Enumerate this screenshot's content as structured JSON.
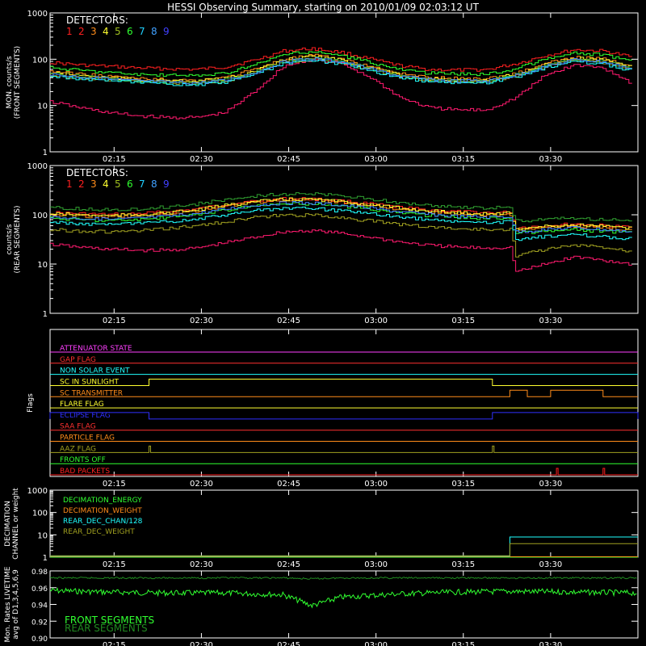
{
  "title": "HESSI Observing Summary, starting on 2010/01/09 02:03:12 UT",
  "colors": {
    "det": [
      "#ff2020",
      "#ff2020",
      "#ff8c1a",
      "#ffff30",
      "#a0c020",
      "#30ff30",
      "#20d0ff",
      "#40a0ff",
      "#4040ff"
    ],
    "det_line": [
      "#ff2020",
      "#ff1a6e",
      "#ff8c1a",
      "#ffff30",
      "#a0a020",
      "#30ff30",
      "#30a030",
      "#20ffff",
      "#4080ff"
    ]
  },
  "time_ticks": [
    "02:15",
    "02:30",
    "02:45",
    "03:00",
    "03:15",
    "03:30"
  ],
  "chart_data": [
    {
      "type": "line",
      "panel": "front",
      "ylabel_lines": [
        "MON. counts/s",
        "(FRONT SEGMENTS)"
      ],
      "yscale": "log",
      "ylim": [
        1,
        1000
      ],
      "ytick_labels": [
        "1",
        "10",
        "100",
        "1000"
      ],
      "legend_title": "DETECTORS:",
      "legend_items": [
        "1",
        "2",
        "3",
        "4",
        "5",
        "6",
        "7",
        "8",
        "9"
      ],
      "x": [
        "02:04",
        "02:09",
        "02:14",
        "02:19",
        "02:24",
        "02:29",
        "02:34",
        "02:39",
        "02:44",
        "02:49",
        "02:54",
        "02:59",
        "03:04",
        "03:09",
        "03:14",
        "03:19",
        "03:24",
        "03:29",
        "03:34",
        "03:39",
        "03:44"
      ],
      "series": [
        {
          "name": "1",
          "values": [
            85,
            75,
            70,
            65,
            62,
            60,
            68,
            95,
            150,
            170,
            140,
            100,
            72,
            60,
            58,
            60,
            80,
            120,
            160,
            150,
            110
          ]
        },
        {
          "name": "2",
          "values": [
            12,
            9,
            7,
            6,
            5.5,
            5.5,
            7,
            20,
            70,
            100,
            80,
            40,
            15,
            9,
            8,
            8,
            15,
            45,
            75,
            65,
            30
          ]
        },
        {
          "name": "3",
          "values": [
            55,
            48,
            42,
            38,
            36,
            35,
            40,
            60,
            100,
            120,
            100,
            70,
            48,
            40,
            38,
            38,
            50,
            80,
            110,
            100,
            70
          ]
        },
        {
          "name": "4",
          "values": [
            50,
            45,
            40,
            36,
            34,
            33,
            38,
            55,
            95,
            115,
            95,
            65,
            45,
            37,
            35,
            35,
            48,
            75,
            105,
            95,
            65
          ]
        },
        {
          "name": "5",
          "values": [
            45,
            40,
            36,
            33,
            31,
            30,
            34,
            50,
            85,
            100,
            85,
            60,
            42,
            35,
            33,
            33,
            44,
            70,
            95,
            85,
            60
          ]
        },
        {
          "name": "6",
          "values": [
            65,
            58,
            52,
            47,
            45,
            44,
            50,
            75,
            125,
            145,
            120,
            85,
            60,
            50,
            48,
            48,
            62,
            100,
            135,
            125,
            85
          ]
        },
        {
          "name": "7",
          "values": [
            48,
            43,
            38,
            34,
            32,
            31,
            36,
            52,
            90,
            105,
            90,
            62,
            44,
            36,
            34,
            34,
            46,
            72,
            100,
            90,
            62
          ]
        },
        {
          "name": "8",
          "values": [
            42,
            38,
            34,
            31,
            29,
            28,
            32,
            47,
            80,
            95,
            80,
            55,
            40,
            33,
            31,
            31,
            42,
            65,
            90,
            80,
            55
          ]
        },
        {
          "name": "9",
          "values": [
            47,
            42,
            37,
            34,
            32,
            31,
            35,
            51,
            88,
            103,
            88,
            61,
            43,
            36,
            34,
            34,
            45,
            70,
            98,
            88,
            61
          ]
        }
      ]
    },
    {
      "type": "line",
      "panel": "rear",
      "ylabel_lines": [
        "counts/s",
        "(REAR SEGMENTS)"
      ],
      "yscale": "log",
      "ylim": [
        1,
        1000
      ],
      "ytick_labels": [
        "1",
        "10",
        "100",
        "1000"
      ],
      "legend_title": "DETECTORS:",
      "legend_items": [
        "1",
        "2",
        "3",
        "4",
        "5",
        "6",
        "7",
        "8",
        "9"
      ],
      "x": [
        "02:04",
        "02:09",
        "02:14",
        "02:19",
        "02:24",
        "02:29",
        "02:34",
        "02:39",
        "02:44",
        "02:49",
        "02:54",
        "02:59",
        "03:04",
        "03:09",
        "03:14",
        "03:19",
        "03:23",
        "03:24",
        "03:29",
        "03:34",
        "03:39",
        "03:44"
      ],
      "series": [
        {
          "name": "1",
          "values": [
            110,
            105,
            100,
            105,
            115,
            130,
            160,
            190,
            210,
            210,
            190,
            165,
            140,
            125,
            115,
            110,
            112,
            55,
            60,
            65,
            60,
            55
          ]
        },
        {
          "name": "2",
          "values": [
            25,
            22,
            20,
            19,
            19,
            21,
            27,
            35,
            45,
            48,
            42,
            35,
            28,
            24,
            22,
            21,
            22,
            7,
            10,
            14,
            12,
            10
          ]
        },
        {
          "name": "3",
          "values": [
            100,
            95,
            90,
            95,
            105,
            120,
            150,
            180,
            200,
            200,
            180,
            155,
            130,
            115,
            105,
            100,
            102,
            50,
            55,
            60,
            55,
            50
          ]
        },
        {
          "name": "4",
          "values": [
            105,
            100,
            95,
            100,
            110,
            125,
            155,
            185,
            205,
            205,
            185,
            160,
            135,
            120,
            110,
            105,
            108,
            52,
            58,
            62,
            58,
            52
          ]
        },
        {
          "name": "5",
          "values": [
            50,
            47,
            45,
            47,
            52,
            60,
            72,
            88,
            98,
            98,
            88,
            75,
            64,
            57,
            52,
            50,
            51,
            15,
            20,
            24,
            22,
            18
          ]
        },
        {
          "name": "6",
          "values": [
            85,
            80,
            76,
            80,
            88,
            100,
            125,
            150,
            165,
            165,
            150,
            130,
            110,
            97,
            88,
            85,
            87,
            42,
            46,
            50,
            46,
            42
          ]
        },
        {
          "name": "7",
          "values": [
            140,
            132,
            125,
            132,
            145,
            165,
            200,
            240,
            265,
            265,
            240,
            210,
            175,
            155,
            142,
            138,
            140,
            75,
            80,
            85,
            80,
            75
          ]
        },
        {
          "name": "8",
          "values": [
            70,
            66,
            63,
            66,
            72,
            82,
            100,
            120,
            135,
            135,
            120,
            105,
            90,
            80,
            73,
            70,
            72,
            32,
            36,
            40,
            36,
            32
          ]
        },
        {
          "name": "9",
          "values": [
            90,
            85,
            80,
            85,
            93,
            106,
            130,
            157,
            173,
            173,
            157,
            136,
            115,
            102,
            93,
            90,
            92,
            45,
            50,
            55,
            50,
            45
          ]
        }
      ]
    },
    {
      "type": "line",
      "panel": "flags",
      "ylabel": "Flags",
      "flags": [
        {
          "label": "ATTENUATOR STATE",
          "color": "#ff40ff",
          "highs": []
        },
        {
          "label": "GAP FLAG",
          "color": "#ff3030",
          "highs": []
        },
        {
          "label": "NON SOLAR EVENT",
          "color": "#20ffff",
          "highs": []
        },
        {
          "label": "SC IN SUNLIGHT",
          "color": "#ffff30",
          "highs": [
            [
              "02:21",
              "03:20"
            ]
          ]
        },
        {
          "label": "SC TRANSMITTER",
          "color": "#ff8c1a",
          "highs": [
            [
              "03:23",
              "03:26"
            ],
            [
              "03:30",
              "03:39"
            ]
          ]
        },
        {
          "label": "FLARE FLAG",
          "color": "#ffff30",
          "highs": []
        },
        {
          "label": "ECLIPSE FLAG",
          "color": "#3030ff",
          "highs": [
            [
              "02:04",
              "02:21"
            ],
            [
              "03:20",
              "03:45"
            ]
          ]
        },
        {
          "label": "SAA FLAG",
          "color": "#ff3030",
          "highs": []
        },
        {
          "label": "PARTICLE FLAG",
          "color": "#ff8c1a",
          "highs": []
        },
        {
          "label": "AAZ FLAG",
          "color": "#a0a020",
          "highs": [
            [
              "02:21",
              "02:21"
            ],
            [
              "03:20",
              "03:20"
            ]
          ]
        },
        {
          "label": "FRONTS OFF",
          "color": "#30ff30",
          "highs": []
        },
        {
          "label": "BAD PACKETS",
          "color": "#ff2020",
          "highs": [
            [
              "03:31",
              "03:31"
            ],
            [
              "03:39",
              "03:39"
            ]
          ]
        }
      ]
    },
    {
      "type": "line",
      "panel": "decimation",
      "ylabel_lines": [
        "DECIMATION",
        "CHANNEL or weight"
      ],
      "yscale": "log",
      "ylim": [
        1,
        1000
      ],
      "ytick_labels": [
        "1",
        "10",
        "100",
        "1000"
      ],
      "legend": [
        {
          "label": "DECIMATION_ENERGY",
          "color": "#30ff30"
        },
        {
          "label": "DECIMATION_WEIGHT",
          "color": "#ff8c1a"
        },
        {
          "label": "REAR_DEC_CHAN/128",
          "color": "#20ffff"
        },
        {
          "label": "REAR_DEC_WEIGHT",
          "color": "#a0a020"
        }
      ],
      "series": [
        {
          "name": "DECIMATION_ENERGY",
          "segments": [
            [
              "02:04",
              "03:45",
              1
            ]
          ]
        },
        {
          "name": "DECIMATION_WEIGHT",
          "segments": [
            [
              "02:04",
              "03:45",
              1
            ]
          ]
        },
        {
          "name": "REAR_DEC_CHAN/128",
          "segments": [
            [
              "02:04",
              "03:23",
              1
            ],
            [
              "03:23",
              "03:45",
              8
            ]
          ]
        },
        {
          "name": "REAR_DEC_WEIGHT",
          "segments": [
            [
              "02:04",
              "03:23",
              1
            ],
            [
              "03:23",
              "03:45",
              4
            ]
          ]
        }
      ]
    },
    {
      "type": "line",
      "panel": "livetime",
      "ylabel_lines": [
        "Mon. Rates LIVETIME",
        "avg of D1,3,4,5,6,9"
      ],
      "ylim": [
        0.9,
        0.98
      ],
      "ytick_labels": [
        "0.90",
        "0.92",
        "0.94",
        "0.96",
        "0.98"
      ],
      "legend": [
        {
          "label": "FRONT SEGMENTS",
          "color": "#30ff30"
        },
        {
          "label": "REAR SEGMENTS",
          "color": "#208a20"
        }
      ],
      "x": [
        "02:04",
        "02:14",
        "02:24",
        "02:34",
        "02:44",
        "02:49",
        "02:54",
        "03:04",
        "03:14",
        "03:24",
        "03:34",
        "03:45"
      ],
      "series": [
        {
          "name": "FRONT SEGMENTS",
          "values": [
            0.958,
            0.956,
            0.955,
            0.955,
            0.953,
            0.94,
            0.95,
            0.954,
            0.956,
            0.957,
            0.956,
            0.955
          ]
        },
        {
          "name": "REAR SEGMENTS",
          "values": [
            0.972,
            0.972,
            0.972,
            0.972,
            0.972,
            0.971,
            0.972,
            0.972,
            0.972,
            0.972,
            0.972,
            0.972
          ]
        }
      ]
    }
  ]
}
